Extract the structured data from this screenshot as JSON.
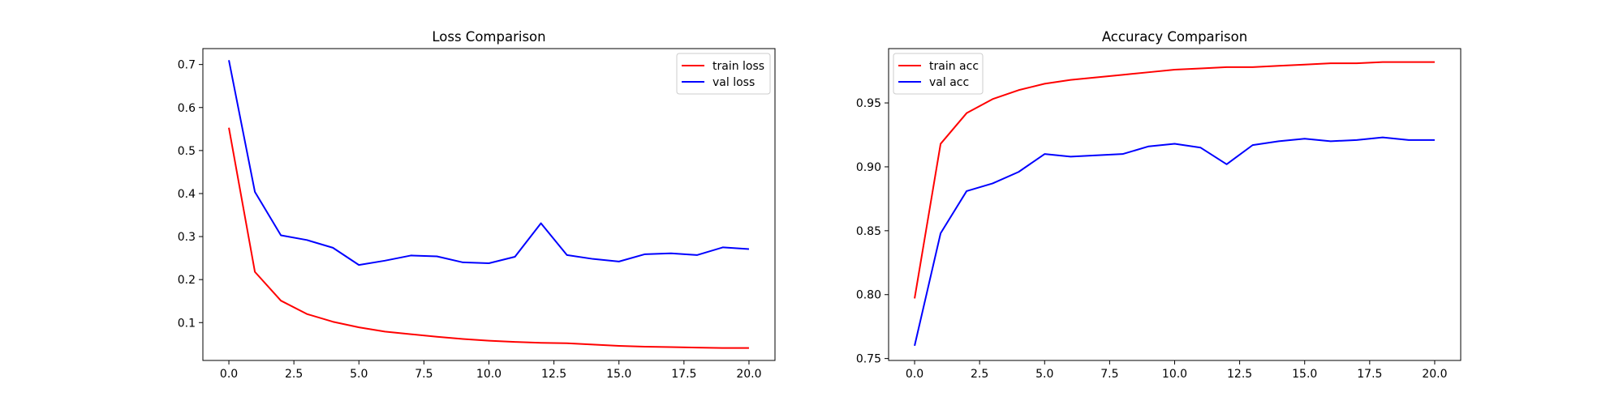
{
  "chart_data": [
    {
      "type": "line",
      "title": "Loss Comparison",
      "xlabel": "",
      "ylabel": "",
      "x": [
        0,
        1,
        2,
        3,
        4,
        5,
        6,
        7,
        8,
        9,
        10,
        11,
        12,
        13,
        14,
        15,
        16,
        17,
        18,
        19,
        20
      ],
      "xlim": [
        -1,
        21
      ],
      "ylim": [
        0.012,
        0.737
      ],
      "xticks": [
        0.0,
        2.5,
        5.0,
        7.5,
        10.0,
        12.5,
        15.0,
        17.5,
        20.0
      ],
      "xtick_labels": [
        "0.0",
        "2.5",
        "5.0",
        "7.5",
        "10.0",
        "12.5",
        "15.0",
        "17.5",
        "20.0"
      ],
      "yticks": [
        0.1,
        0.2,
        0.3,
        0.4,
        0.5,
        0.6,
        0.7
      ],
      "ytick_labels": [
        "0.1",
        "0.2",
        "0.3",
        "0.4",
        "0.5",
        "0.6",
        "0.7"
      ],
      "grid": false,
      "legend_position": "top-right",
      "series": [
        {
          "name": "train loss",
          "color": "#ff0000",
          "values": [
            0.553,
            0.218,
            0.151,
            0.12,
            0.102,
            0.089,
            0.079,
            0.073,
            0.067,
            0.062,
            0.058,
            0.055,
            0.053,
            0.052,
            0.049,
            0.046,
            0.044,
            0.043,
            0.042,
            0.041,
            0.041
          ]
        },
        {
          "name": "val loss",
          "color": "#0000ff",
          "values": [
            0.71,
            0.404,
            0.303,
            0.292,
            0.274,
            0.234,
            0.244,
            0.256,
            0.254,
            0.24,
            0.238,
            0.253,
            0.331,
            0.257,
            0.248,
            0.242,
            0.259,
            0.261,
            0.257,
            0.275,
            0.271
          ]
        }
      ]
    },
    {
      "type": "line",
      "title": "Accuracy Comparison",
      "xlabel": "",
      "ylabel": "",
      "x": [
        0,
        1,
        2,
        3,
        4,
        5,
        6,
        7,
        8,
        9,
        10,
        11,
        12,
        13,
        14,
        15,
        16,
        17,
        18,
        19,
        20
      ],
      "xlim": [
        -1,
        21
      ],
      "ylim": [
        0.7485,
        0.9925
      ],
      "xticks": [
        0.0,
        2.5,
        5.0,
        7.5,
        10.0,
        12.5,
        15.0,
        17.5,
        20.0
      ],
      "xtick_labels": [
        "0.0",
        "2.5",
        "5.0",
        "7.5",
        "10.0",
        "12.5",
        "15.0",
        "17.5",
        "20.0"
      ],
      "yticks": [
        0.75,
        0.8,
        0.85,
        0.9,
        0.95
      ],
      "ytick_labels": [
        "0.75",
        "0.80",
        "0.85",
        "0.90",
        "0.95"
      ],
      "grid": false,
      "legend_position": "top-left",
      "series": [
        {
          "name": "train acc",
          "color": "#ff0000",
          "values": [
            0.797,
            0.918,
            0.942,
            0.953,
            0.96,
            0.965,
            0.968,
            0.97,
            0.972,
            0.974,
            0.976,
            0.977,
            0.978,
            0.978,
            0.979,
            0.98,
            0.981,
            0.981,
            0.982,
            0.982,
            0.982
          ]
        },
        {
          "name": "val acc",
          "color": "#0000ff",
          "values": [
            0.76,
            0.848,
            0.881,
            0.887,
            0.896,
            0.91,
            0.908,
            0.909,
            0.91,
            0.916,
            0.918,
            0.915,
            0.902,
            0.917,
            0.92,
            0.922,
            0.92,
            0.921,
            0.923,
            0.921,
            0.921
          ]
        }
      ]
    }
  ]
}
